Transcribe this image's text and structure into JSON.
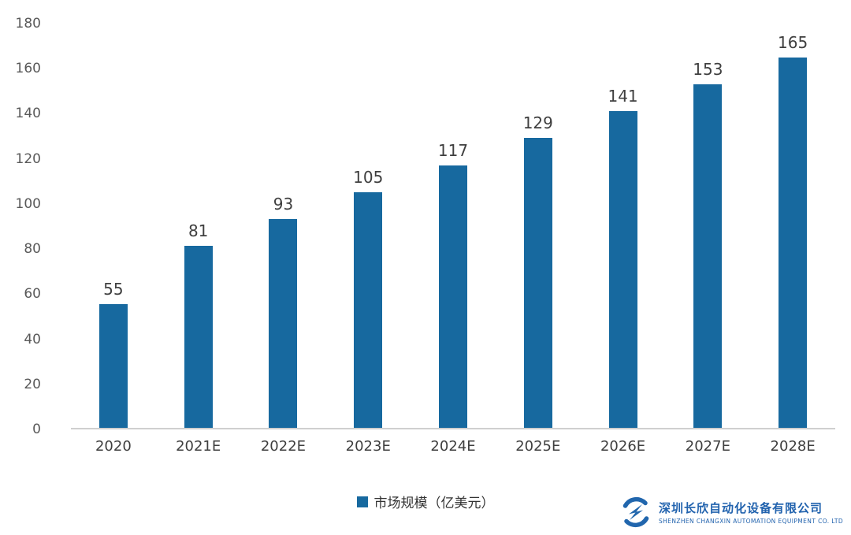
{
  "chart_data": {
    "type": "bar",
    "categories": [
      "2020",
      "2021E",
      "2022E",
      "2023E",
      "2024E",
      "2025E",
      "2026E",
      "2027E",
      "2028E"
    ],
    "values": [
      55,
      81,
      93,
      105,
      117,
      129,
      141,
      153,
      165
    ],
    "title": "",
    "xlabel": "",
    "ylabel": "",
    "ylim": [
      0,
      180
    ],
    "yticks": [
      0,
      20,
      40,
      60,
      80,
      100,
      120,
      140,
      160,
      180
    ],
    "grid": false,
    "legend_position": "bottom",
    "bar_color": "#17699f"
  },
  "legend": {
    "market_size_label": "市场规模（亿美元）"
  },
  "footer": {
    "company_cn": "深圳长欣自动化设备有限公司",
    "company_en": "SHENZHEN CHANGXIN AUTOMATION EQUIPMENT CO. LTD",
    "brand_color": "#2263ae"
  }
}
